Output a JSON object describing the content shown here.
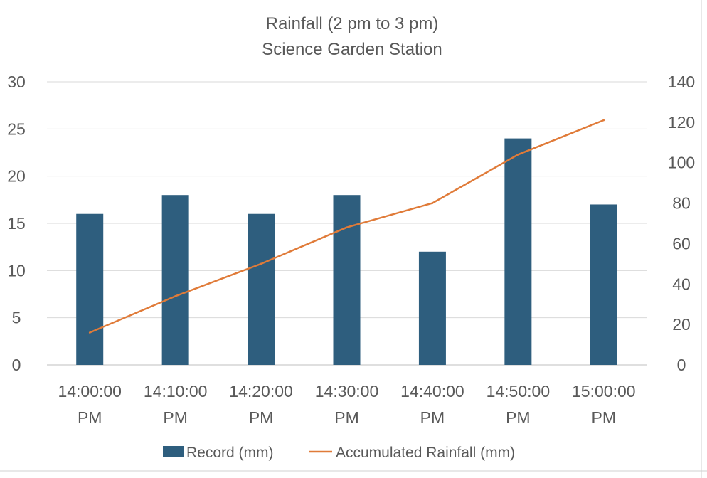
{
  "chart_data": {
    "type": "bar",
    "title": "Rainfall (2 pm to 3 pm)",
    "subtitle": "Science Garden Station",
    "categories": [
      [
        "14:00:00",
        "PM"
      ],
      [
        "14:10:00",
        "PM"
      ],
      [
        "14:20:00",
        "PM"
      ],
      [
        "14:30:00",
        "PM"
      ],
      [
        "14:40:00",
        "PM"
      ],
      [
        "14:50:00",
        "PM"
      ],
      [
        "15:00:00",
        "PM"
      ]
    ],
    "series": [
      {
        "name": "Record (mm)",
        "type": "bar",
        "axis": "left",
        "values": [
          16,
          18,
          16,
          18,
          12,
          24,
          17
        ],
        "color": "#2e5e7e"
      },
      {
        "name": "Accumulated Rainfall (mm)",
        "type": "line",
        "axis": "right",
        "values": [
          16,
          34,
          50,
          68,
          80,
          104,
          121
        ],
        "color": "#e07b39"
      }
    ],
    "ylim_left": [
      0,
      30
    ],
    "yticks_left": [
      0,
      5,
      10,
      15,
      20,
      25,
      30
    ],
    "ylim_right": [
      0,
      140
    ],
    "yticks_right": [
      0,
      20,
      40,
      60,
      80,
      100,
      120,
      140
    ],
    "grid": true,
    "legend_position": "bottom"
  }
}
